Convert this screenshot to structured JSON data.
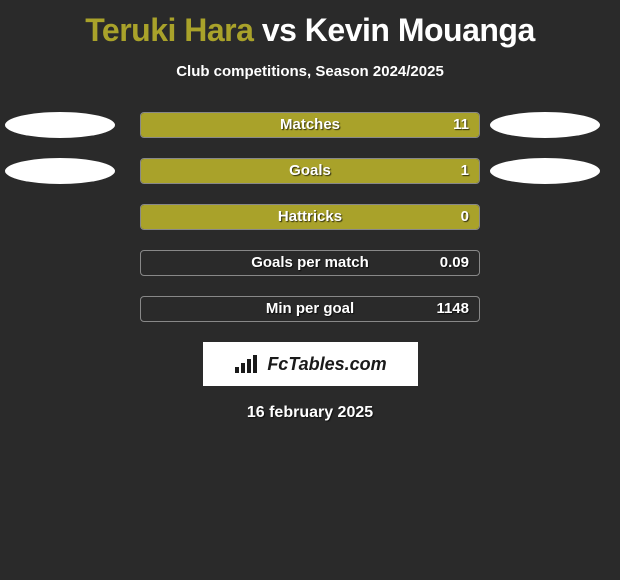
{
  "title": {
    "player_a": "Teruki Hara",
    "vs": "vs",
    "player_b": "Kevin Mouanga",
    "color_a": "#a9a22a",
    "color_b": "#ffffff"
  },
  "subtitle": "Club competitions, Season 2024/2025",
  "stats": [
    {
      "label": "Matches",
      "value": "11",
      "fill_pct": 100,
      "fill_color": "#a9a22a",
      "show_left_ellipse": true,
      "show_right_ellipse": true
    },
    {
      "label": "Goals",
      "value": "1",
      "fill_pct": 100,
      "fill_color": "#a9a22a",
      "show_left_ellipse": true,
      "show_right_ellipse": true
    },
    {
      "label": "Hattricks",
      "value": "0",
      "fill_pct": 100,
      "fill_color": "#a9a22a",
      "show_left_ellipse": false,
      "show_right_ellipse": false
    },
    {
      "label": "Goals per match",
      "value": "0.09",
      "fill_pct": 0,
      "fill_color": "#a9a22a",
      "show_left_ellipse": false,
      "show_right_ellipse": false
    },
    {
      "label": "Min per goal",
      "value": "1148",
      "fill_pct": 0,
      "fill_color": "#a9a22a",
      "show_left_ellipse": false,
      "show_right_ellipse": false
    }
  ],
  "logo": {
    "text": "FcTables.com"
  },
  "date": "16 february 2025",
  "colors": {
    "background": "#2a2a2a",
    "ellipse": "#ffffff",
    "bar_border": "#888888",
    "text": "#ffffff"
  }
}
